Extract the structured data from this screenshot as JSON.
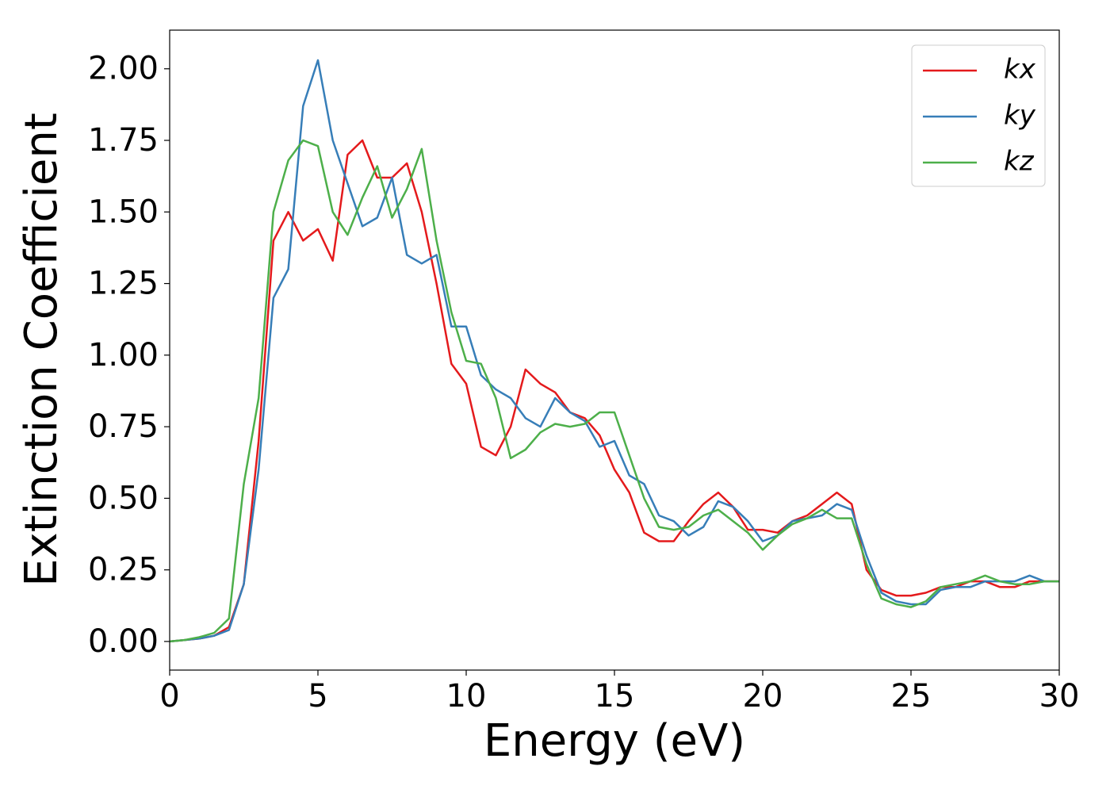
{
  "chart_data": {
    "type": "line",
    "xlabel": "Energy (eV)",
    "ylabel": "Extinction Coefficient",
    "x": [
      0,
      0.5,
      1,
      1.5,
      2,
      2.5,
      3,
      3.5,
      4,
      4.5,
      5,
      5.5,
      6,
      6.5,
      7,
      7.5,
      8,
      8.5,
      9,
      9.5,
      10,
      10.5,
      11,
      11.5,
      12,
      12.5,
      13,
      13.5,
      14,
      14.5,
      15,
      15.5,
      16,
      16.5,
      17,
      17.5,
      18,
      18.5,
      19,
      19.5,
      20,
      20.5,
      21,
      21.5,
      22,
      22.5,
      23,
      23.5,
      24,
      24.5,
      25,
      25.5,
      26,
      26.5,
      27,
      27.5,
      28,
      28.5,
      29,
      29.5,
      30
    ],
    "series": [
      {
        "name": "kx",
        "color": "#e41a1c",
        "values": [
          0,
          0.005,
          0.01,
          0.02,
          0.05,
          0.2,
          0.7,
          1.4,
          1.5,
          1.4,
          1.44,
          1.33,
          1.7,
          1.75,
          1.62,
          1.62,
          1.67,
          1.5,
          1.25,
          0.97,
          0.9,
          0.68,
          0.65,
          0.75,
          0.95,
          0.9,
          0.87,
          0.8,
          0.78,
          0.72,
          0.6,
          0.52,
          0.38,
          0.35,
          0.35,
          0.42,
          0.48,
          0.52,
          0.47,
          0.39,
          0.39,
          0.38,
          0.42,
          0.44,
          0.48,
          0.52,
          0.48,
          0.25,
          0.18,
          0.16,
          0.16,
          0.17,
          0.19,
          0.19,
          0.21,
          0.21,
          0.19,
          0.19,
          0.21,
          0.21,
          0.21
        ]
      },
      {
        "name": "ky",
        "color": "#377eb8",
        "values": [
          0,
          0.005,
          0.01,
          0.02,
          0.04,
          0.2,
          0.6,
          1.2,
          1.3,
          1.87,
          2.03,
          1.75,
          1.6,
          1.45,
          1.48,
          1.62,
          1.35,
          1.32,
          1.35,
          1.1,
          1.1,
          0.93,
          0.88,
          0.85,
          0.78,
          0.75,
          0.85,
          0.8,
          0.77,
          0.68,
          0.7,
          0.58,
          0.55,
          0.44,
          0.42,
          0.37,
          0.4,
          0.49,
          0.47,
          0.42,
          0.35,
          0.37,
          0.42,
          0.43,
          0.44,
          0.48,
          0.46,
          0.3,
          0.17,
          0.14,
          0.13,
          0.13,
          0.18,
          0.19,
          0.19,
          0.21,
          0.21,
          0.21,
          0.23,
          0.21,
          0.21
        ]
      },
      {
        "name": "kz",
        "color": "#4daf4a",
        "values": [
          0,
          0.005,
          0.015,
          0.03,
          0.08,
          0.55,
          0.85,
          1.5,
          1.68,
          1.75,
          1.73,
          1.5,
          1.42,
          1.55,
          1.66,
          1.48,
          1.58,
          1.72,
          1.4,
          1.15,
          0.98,
          0.97,
          0.85,
          0.64,
          0.67,
          0.73,
          0.76,
          0.75,
          0.76,
          0.8,
          0.8,
          0.65,
          0.5,
          0.4,
          0.39,
          0.4,
          0.44,
          0.46,
          0.42,
          0.38,
          0.32,
          0.37,
          0.41,
          0.43,
          0.46,
          0.43,
          0.43,
          0.27,
          0.15,
          0.13,
          0.12,
          0.14,
          0.19,
          0.2,
          0.21,
          0.23,
          0.21,
          0.2,
          0.2,
          0.21,
          0.21
        ]
      }
    ],
    "xlim": [
      0,
      30
    ],
    "xticks": [
      0,
      5,
      10,
      15,
      20,
      25,
      30
    ],
    "ylim": [
      -0.1,
      2.135
    ],
    "yticks": [
      {
        "value": 0,
        "label": "0.00"
      },
      {
        "value": 0.25,
        "label": "0.25"
      },
      {
        "value": 0.5,
        "label": "0.50"
      },
      {
        "value": 0.75,
        "label": "0.75"
      },
      {
        "value": 1,
        "label": "1.00"
      },
      {
        "value": 1.25,
        "label": "1.25"
      },
      {
        "value": 1.5,
        "label": "1.50"
      },
      {
        "value": 1.75,
        "label": "1.75"
      },
      {
        "value": 2,
        "label": "2.00"
      }
    ],
    "legend": "upper right",
    "grid": false
  }
}
